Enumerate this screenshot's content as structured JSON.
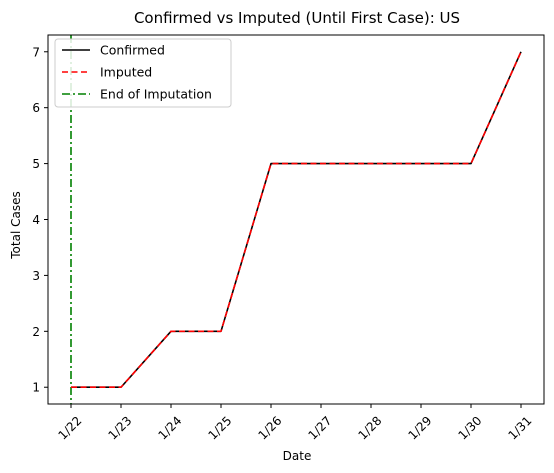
{
  "chart_data": {
    "type": "line",
    "title": "Confirmed vs Imputed (Until First Case): US",
    "xlabel": "Date",
    "ylabel": "Total Cases",
    "categories": [
      "1/22",
      "1/23",
      "1/24",
      "1/25",
      "1/26",
      "1/27",
      "1/28",
      "1/29",
      "1/30",
      "1/31"
    ],
    "series": [
      {
        "name": "Confirmed",
        "values": [
          1,
          1,
          2,
          2,
          5,
          5,
          5,
          5,
          5,
          7
        ],
        "color": "#000000",
        "style": "solid"
      },
      {
        "name": "Imputed",
        "values": [
          1,
          1,
          2,
          2,
          5,
          5,
          5,
          5,
          5,
          7
        ],
        "color": "#ff0000",
        "style": "dashed"
      }
    ],
    "vline": {
      "name": "End of Imputation",
      "x": "1/22",
      "color": "#008000",
      "style": "dashdot"
    },
    "yticks": [
      1,
      2,
      3,
      4,
      5,
      6,
      7
    ],
    "ylim": [
      0.7,
      7.3
    ],
    "grid": false,
    "legend_position": "upper-left"
  }
}
